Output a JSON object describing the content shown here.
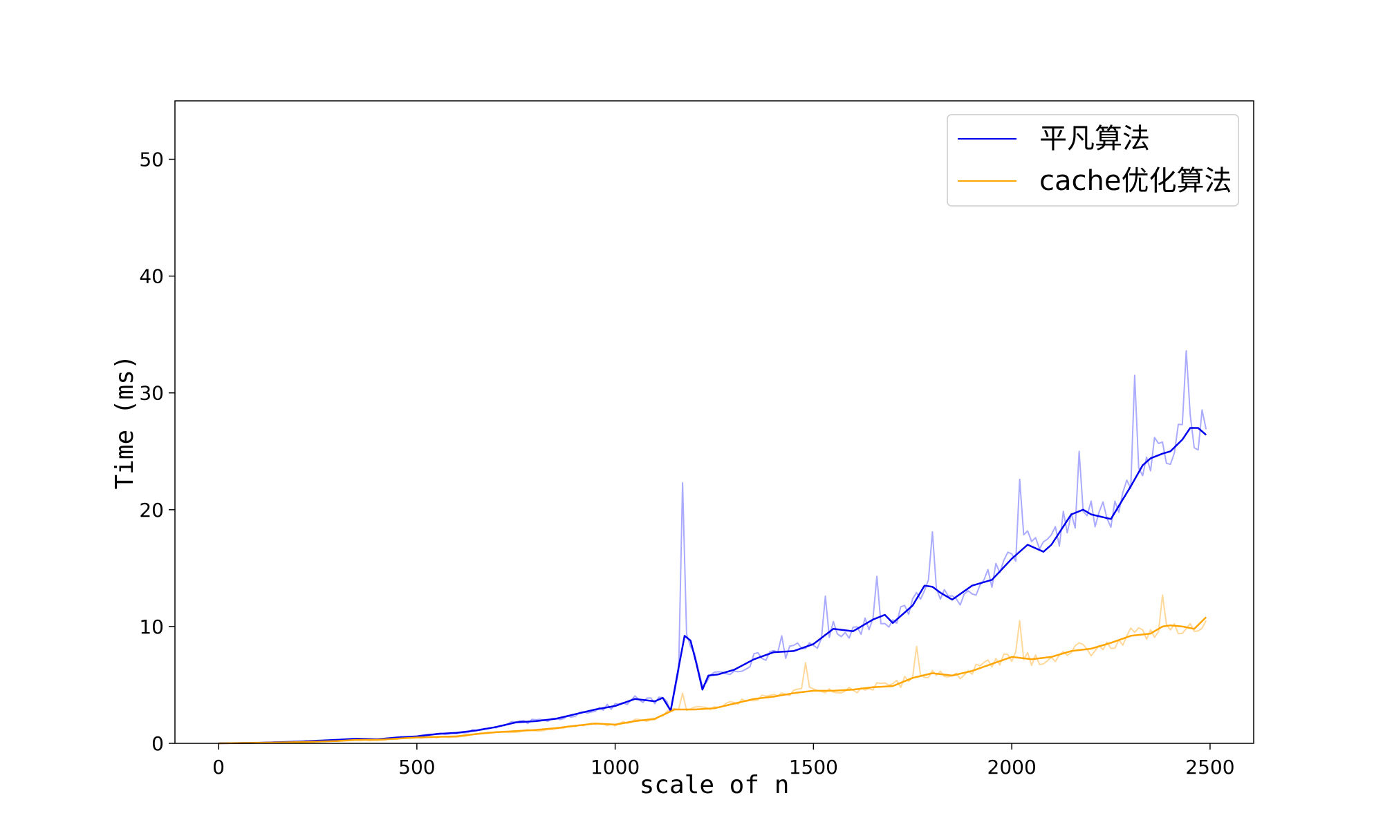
{
  "chart_data": {
    "type": "line",
    "title": "",
    "xlabel": "scale of n",
    "ylabel": "Time (ms)",
    "xlim": [
      -110,
      2610
    ],
    "ylim": [
      0,
      55
    ],
    "xticks": [
      0,
      500,
      1000,
      1500,
      2000,
      2500
    ],
    "yticks": [
      0,
      10,
      20,
      30,
      40,
      50
    ],
    "grid": false,
    "legend_position": "top-right",
    "colors": {
      "series_0": "#0000ee",
      "series_1": "#ffa500",
      "raw_0": "#aaaaff",
      "raw_1": "#ffd89a",
      "axis": "#000000"
    },
    "series": [
      {
        "name": "平凡算法",
        "x": [
          0,
          100,
          200,
          300,
          350,
          400,
          450,
          500,
          550,
          600,
          650,
          700,
          750,
          800,
          850,
          900,
          950,
          1000,
          1050,
          1100,
          1120,
          1140,
          1160,
          1175,
          1190,
          1205,
          1220,
          1235,
          1260,
          1300,
          1350,
          1400,
          1450,
          1500,
          1550,
          1600,
          1650,
          1680,
          1700,
          1750,
          1780,
          1800,
          1820,
          1850,
          1900,
          1950,
          2000,
          2040,
          2080,
          2100,
          2150,
          2180,
          2200,
          2250,
          2300,
          2330,
          2350,
          2380,
          2400,
          2430,
          2450,
          2470,
          2490
        ],
        "values": [
          0.0,
          0.05,
          0.15,
          0.3,
          0.4,
          0.35,
          0.5,
          0.6,
          0.8,
          0.9,
          1.1,
          1.4,
          1.8,
          1.9,
          2.1,
          2.5,
          2.9,
          3.2,
          3.8,
          3.6,
          3.9,
          2.8,
          6.5,
          9.2,
          8.8,
          6.8,
          4.6,
          5.8,
          5.9,
          6.3,
          7.2,
          7.8,
          7.9,
          8.5,
          9.8,
          9.6,
          10.6,
          11.0,
          10.3,
          11.8,
          13.5,
          13.4,
          12.9,
          12.3,
          13.5,
          14.0,
          15.8,
          17.0,
          16.4,
          17.0,
          19.6,
          20.0,
          19.6,
          19.2,
          22.0,
          23.8,
          24.4,
          24.8,
          25.0,
          26.0,
          27.0,
          27.0,
          26.4
        ]
      },
      {
        "name": "cache优化算法",
        "x": [
          0,
          100,
          200,
          300,
          350,
          400,
          450,
          500,
          550,
          600,
          650,
          700,
          750,
          800,
          850,
          900,
          950,
          1000,
          1050,
          1100,
          1150,
          1200,
          1250,
          1300,
          1350,
          1400,
          1450,
          1500,
          1550,
          1600,
          1650,
          1700,
          1750,
          1800,
          1850,
          1900,
          1950,
          2000,
          2050,
          2100,
          2150,
          2200,
          2250,
          2300,
          2350,
          2380,
          2400,
          2430,
          2460,
          2490
        ],
        "values": [
          0.0,
          0.05,
          0.1,
          0.2,
          0.3,
          0.3,
          0.4,
          0.5,
          0.55,
          0.6,
          0.8,
          0.95,
          1.05,
          1.15,
          1.3,
          1.5,
          1.7,
          1.6,
          1.9,
          2.1,
          2.9,
          2.9,
          3.0,
          3.4,
          3.8,
          4.0,
          4.3,
          4.5,
          4.5,
          4.6,
          4.8,
          4.9,
          5.6,
          6.0,
          5.8,
          6.2,
          6.8,
          7.4,
          7.2,
          7.4,
          7.9,
          8.1,
          8.6,
          9.2,
          9.4,
          10.0,
          10.1,
          10.0,
          9.8,
          10.8
        ]
      }
    ]
  }
}
